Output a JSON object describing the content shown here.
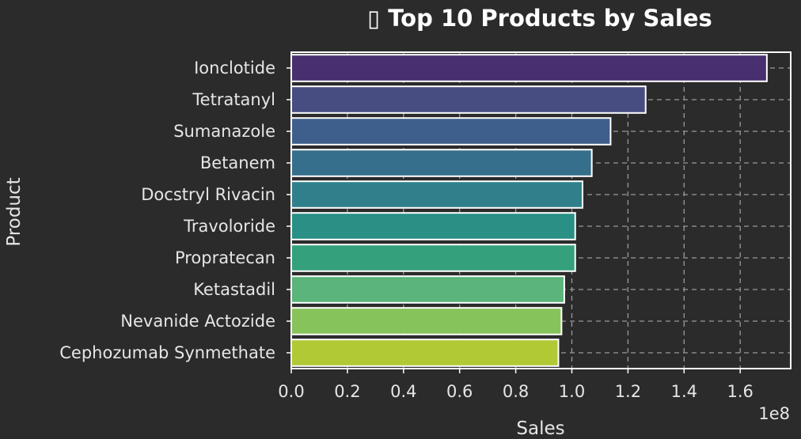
{
  "chart_data": {
    "type": "bar",
    "orientation": "horizontal",
    "title": "▯ Top 10 Products by Sales",
    "xlabel": "Sales",
    "ylabel": "Product",
    "offset_label": "1e8",
    "categories": [
      "Ionclotide",
      "Tetratanyl",
      "Sumanazole",
      "Betanem",
      "Docstryl Rivacin",
      "Travoloride",
      "Propratecan",
      "Ketastadil",
      "Nevanide Actozide",
      "Cephozumab Synmethate"
    ],
    "values": [
      1.695,
      1.263,
      1.138,
      1.071,
      1.038,
      1.012,
      1.012,
      0.973,
      0.963,
      0.952
    ],
    "value_scale": "1e8",
    "xlim": [
      0,
      1.78
    ],
    "xticks": [
      "0.0",
      "0.2",
      "0.4",
      "0.6",
      "0.8",
      "1.0",
      "1.2",
      "1.4",
      "1.6"
    ],
    "grid": true,
    "colors": [
      "#482f6f",
      "#474c81",
      "#3e5f8c",
      "#366f8b",
      "#2f808b",
      "#2a8f84",
      "#35a07c",
      "#5bb479",
      "#86c35a",
      "#b1c935"
    ],
    "background": "#2b2b2b"
  }
}
